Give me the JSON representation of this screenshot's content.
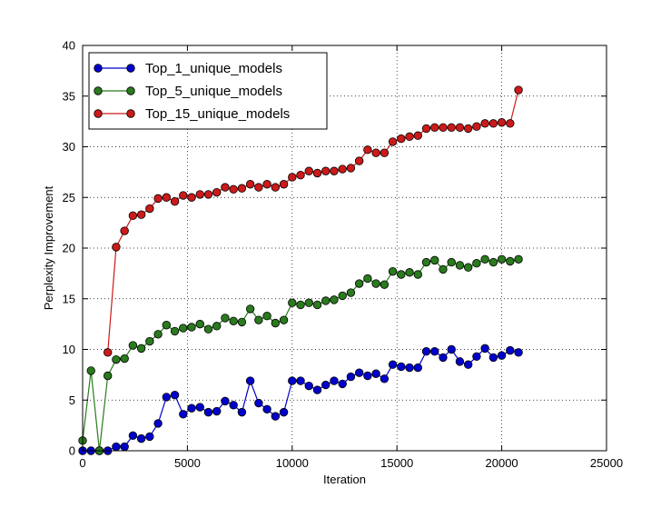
{
  "chart_data": {
    "type": "line",
    "title": "",
    "xlabel": "Iteration",
    "ylabel": "Perplexity Improvement",
    "xlim": [
      0,
      25000
    ],
    "ylim": [
      0,
      40
    ],
    "x_ticks": [
      "0",
      "5000",
      "10000",
      "15000",
      "20000",
      "25000"
    ],
    "y_ticks": [
      "0",
      "5",
      "10",
      "15",
      "20",
      "25",
      "30",
      "35",
      "40"
    ],
    "grid": true,
    "legend_position": "top-left",
    "series": [
      {
        "name": "Top_1_unique_models",
        "color": "#0000cc",
        "x": [
          0,
          400,
          800,
          1200,
          1600,
          2000,
          2400,
          2800,
          3200,
          3600,
          4000,
          4400,
          4800,
          5200,
          5600,
          6000,
          6400,
          6800,
          7200,
          7600,
          8000,
          8400,
          8800,
          9200,
          9600,
          10000,
          10400,
          10800,
          11200,
          11600,
          12000,
          12400,
          12800,
          13200,
          13600,
          14000,
          14400,
          14800,
          15200,
          15600,
          16000,
          16400,
          16800,
          17200,
          17600,
          18000,
          18400,
          18800,
          19200,
          19600,
          20000,
          20400,
          20800
        ],
        "y": [
          0.0,
          0.0,
          0.0,
          0.0,
          0.4,
          0.4,
          1.5,
          1.2,
          1.4,
          2.7,
          5.3,
          5.5,
          3.6,
          4.2,
          4.3,
          3.8,
          3.9,
          4.9,
          4.5,
          3.8,
          6.9,
          4.7,
          4.1,
          3.4,
          3.8,
          6.9,
          6.9,
          6.4,
          6.0,
          6.5,
          6.9,
          6.6,
          7.3,
          7.7,
          7.4,
          7.6,
          7.1,
          8.5,
          8.3,
          8.2,
          8.2,
          9.8,
          9.8,
          9.2,
          10.0,
          8.8,
          8.5,
          9.3,
          10.1,
          9.2,
          9.4,
          9.9,
          9.7
        ]
      },
      {
        "name": "Top_5_unique_models",
        "color": "#2a7a1e",
        "x": [
          0,
          400,
          800,
          1200,
          1600,
          2000,
          2400,
          2800,
          3200,
          3600,
          4000,
          4400,
          4800,
          5200,
          5600,
          6000,
          6400,
          6800,
          7200,
          7600,
          8000,
          8400,
          8800,
          9200,
          9600,
          10000,
          10400,
          10800,
          11200,
          11600,
          12000,
          12400,
          12800,
          13200,
          13600,
          14000,
          14400,
          14800,
          15200,
          15600,
          16000,
          16400,
          16800,
          17200,
          17600,
          18000,
          18400,
          18800,
          19200,
          19600,
          20000,
          20400,
          20800
        ],
        "y": [
          1.0,
          7.9,
          0.0,
          7.4,
          9.0,
          9.1,
          10.4,
          10.1,
          10.8,
          11.5,
          12.4,
          11.8,
          12.1,
          12.2,
          12.5,
          12.0,
          12.3,
          13.1,
          12.8,
          12.7,
          14.0,
          12.9,
          13.3,
          12.6,
          12.9,
          14.6,
          14.4,
          14.6,
          14.4,
          14.8,
          14.9,
          15.3,
          15.6,
          16.5,
          17.0,
          16.5,
          16.4,
          17.7,
          17.4,
          17.6,
          17.4,
          18.6,
          18.8,
          17.9,
          18.6,
          18.3,
          18.1,
          18.5,
          18.9,
          18.6,
          18.9,
          18.7,
          18.9
        ]
      },
      {
        "name": "Top_15_unique_models",
        "color": "#cc1a1a",
        "x": [
          1200,
          1600,
          2000,
          2400,
          2800,
          3200,
          3600,
          4000,
          4400,
          4800,
          5200,
          5600,
          6000,
          6400,
          6800,
          7200,
          7600,
          8000,
          8400,
          8800,
          9200,
          9600,
          10000,
          10400,
          10800,
          11200,
          11600,
          12000,
          12400,
          12800,
          13200,
          13600,
          14000,
          14400,
          14800,
          15200,
          15600,
          16000,
          16400,
          16800,
          17200,
          17600,
          18000,
          18400,
          18800,
          19200,
          19600,
          20000,
          20400,
          20800
        ],
        "y": [
          9.7,
          20.1,
          21.7,
          23.2,
          23.3,
          23.9,
          24.9,
          25.0,
          24.6,
          25.2,
          25.0,
          25.3,
          25.3,
          25.5,
          26.0,
          25.8,
          25.9,
          26.3,
          26.0,
          26.3,
          26.0,
          26.3,
          27.0,
          27.2,
          27.6,
          27.4,
          27.6,
          27.6,
          27.8,
          27.9,
          28.6,
          29.7,
          29.4,
          29.4,
          30.5,
          30.8,
          31.0,
          31.1,
          31.8,
          31.9,
          31.9,
          31.9,
          31.9,
          31.8,
          32.0,
          32.3,
          32.3,
          32.4,
          32.3,
          35.6
        ]
      }
    ]
  }
}
